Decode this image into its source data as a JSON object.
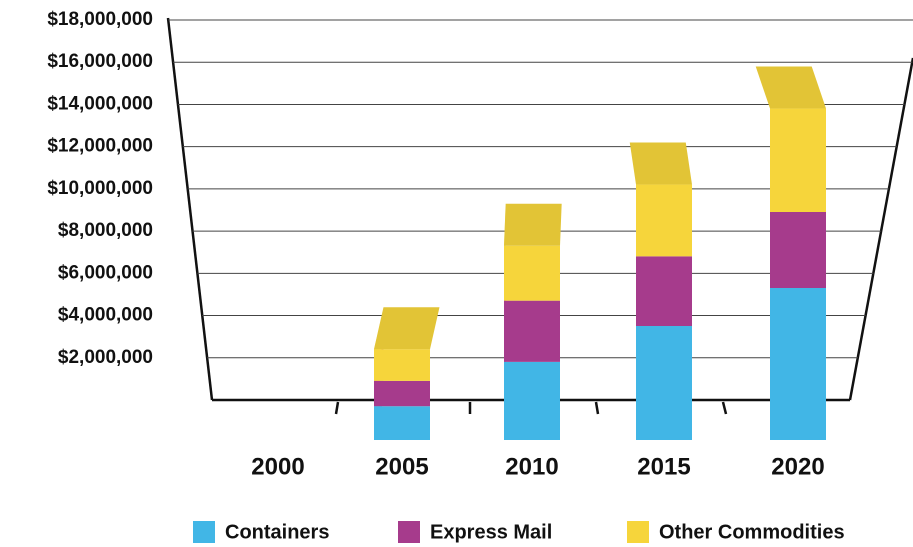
{
  "chart_data": {
    "type": "bar",
    "stacked": true,
    "categories": [
      "2000",
      "2005",
      "2010",
      "2015",
      "2020"
    ],
    "series": [
      {
        "name": "Containers",
        "color": "#41b6e6",
        "values": [
          0,
          1600000,
          3700000,
          5400000,
          7200000
        ]
      },
      {
        "name": "Express Mail",
        "color": "#a63b8c",
        "values": [
          0,
          1200000,
          2900000,
          3300000,
          3600000
        ]
      },
      {
        "name": "Other Commodities",
        "color": "#f6d53b",
        "values": [
          0,
          1500000,
          2600000,
          3400000,
          4900000
        ]
      }
    ],
    "ylim": [
      0,
      18000000
    ],
    "yticks": [
      {
        "value": 2000000,
        "label": "$2,000,000"
      },
      {
        "value": 4000000,
        "label": "$4,000,000"
      },
      {
        "value": 6000000,
        "label": "$6,000,000"
      },
      {
        "value": 8000000,
        "label": "$8,000,000"
      },
      {
        "value": 10000000,
        "label": "$10,000,000"
      },
      {
        "value": 12000000,
        "label": "$12,000,000"
      },
      {
        "value": 14000000,
        "label": "$14,000,000"
      },
      {
        "value": 16000000,
        "label": "$16,000,000"
      },
      {
        "value": 18000000,
        "label": "$18,000,000"
      }
    ],
    "grid": true
  }
}
